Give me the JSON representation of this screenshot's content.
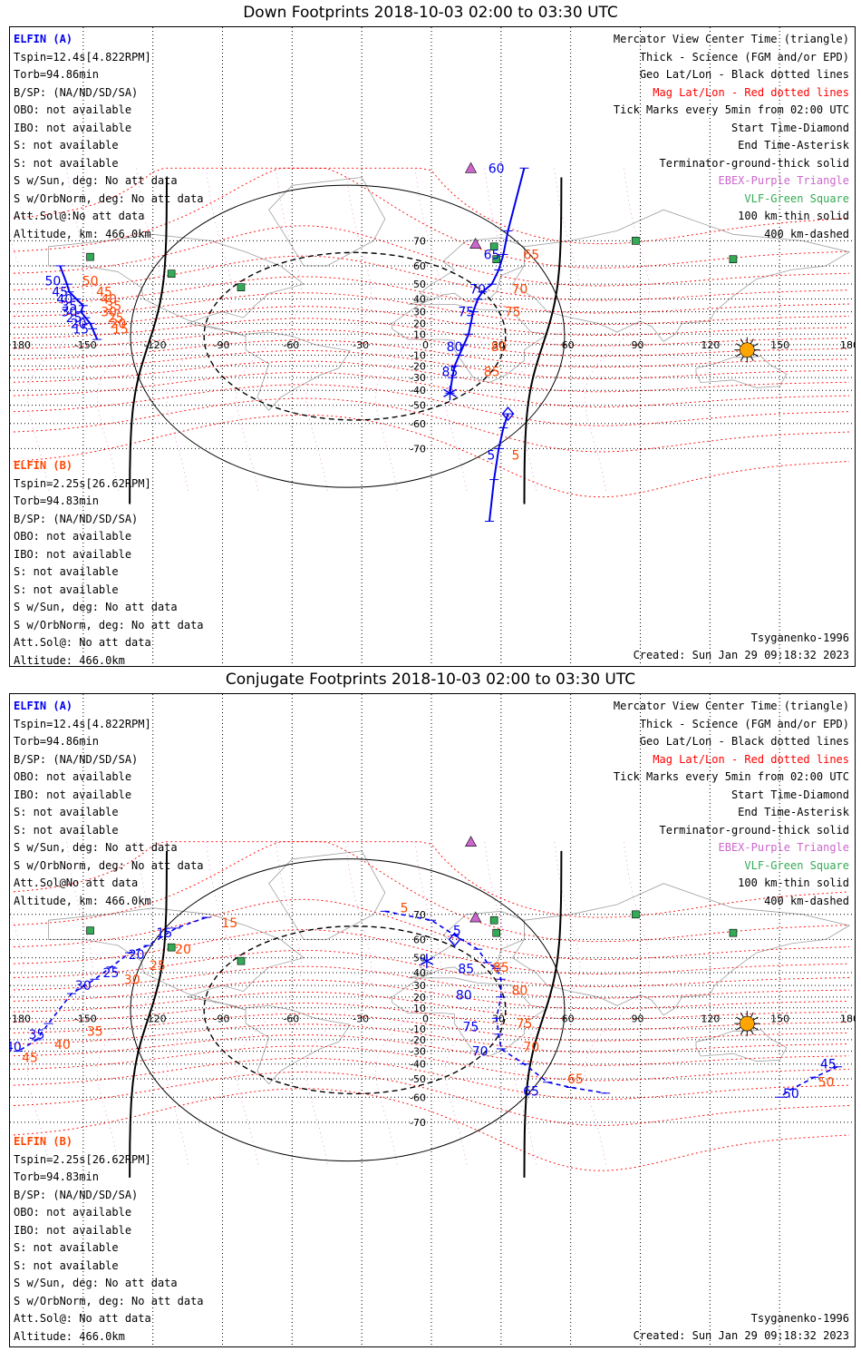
{
  "colors": {
    "sat_a": "#0000ee",
    "sat_b": "#ff4500",
    "mag_grid": "#ff0000",
    "geo_grid": "#000000",
    "coast": "#a0a0a0",
    "ebex": "#cc66cc",
    "vlf": "#33aa55",
    "sun": "#ffa500"
  },
  "panels": [
    {
      "id": "down",
      "title": "Down Footprints 2018-10-03 02:00 to 03:30 UTC",
      "sat_a": {
        "header": "ELFIN (A)",
        "lines": [
          "Tspin=12.4s[4.822RPM]",
          "Torb=94.86min",
          "B/SP: (NA/ND/SD/SA)",
          "OBO: not available",
          "IBO: not available",
          "S: not available",
          "S: not available",
          "S w/Sun, deg: No att data",
          "S w/OrbNorm, deg: No att data",
          "Att.Sol@:No att data",
          "Altitude, km: 466.0km"
        ]
      },
      "sat_b": {
        "header": "ELFIN (B)",
        "lines": [
          "Tspin=2.25s[26.62RPM]",
          "Torb=94.83min",
          "B/SP: (NA/ND/SD/SA)",
          "OBO: not available",
          "IBO: not available",
          "S: not available",
          "S: not available",
          "S w/Sun, deg: No att data",
          "S w/OrbNorm, deg: No att data",
          "Att.Sol@: No att data",
          "Altitude: 466.0km"
        ]
      },
      "tracks_a": [
        {
          "pts": [
            [
              -160,
              60
            ],
            [
              -157,
              50
            ],
            [
              -156,
              45
            ],
            [
              -153,
              40
            ],
            [
              -150,
              35
            ],
            [
              -151,
              30
            ],
            [
              -149,
              25
            ],
            [
              -147,
              20
            ],
            [
              -146,
              15
            ],
            [
              -144,
              5
            ]
          ],
          "labels": [
            {
              "lon": -158,
              "lat": 52,
              "t": "50",
              "side": "l"
            },
            {
              "lon": -155,
              "lat": 45,
              "t": "45",
              "side": "l"
            },
            {
              "lon": -153,
              "lat": 40,
              "t": "40",
              "side": "l"
            },
            {
              "lon": -151,
              "lat": 35,
              "t": "35",
              "side": "l"
            },
            {
              "lon": -151,
              "lat": 30,
              "t": "30",
              "side": "l"
            },
            {
              "lon": -149,
              "lat": 25,
              "t": "25",
              "side": "l"
            },
            {
              "lon": -147,
              "lat": 20,
              "t": "20",
              "side": "l"
            },
            {
              "lon": -146,
              "lat": 15,
              "t": "15",
              "side": "l"
            }
          ]
        },
        {
          "pts": [
            [
              40,
              88
            ],
            [
              33,
              73
            ],
            [
              31,
              65
            ],
            [
              29,
              58
            ],
            [
              26,
              50
            ],
            [
              22,
              45
            ],
            [
              20,
              40
            ],
            [
              18,
              30
            ],
            [
              17,
              20
            ],
            [
              16,
              10
            ],
            [
              14,
              0
            ],
            [
              12,
              -10
            ],
            [
              10,
              -20
            ],
            [
              9,
              -30
            ],
            [
              8,
              -42
            ]
          ],
          "labels": [
            {
              "lon": 33,
              "lat": 84,
              "t": "60",
              "side": "l"
            },
            {
              "lon": 31,
              "lat": 65,
              "t": "65",
              "side": "l"
            },
            {
              "lon": 25,
              "lat": 47,
              "t": "70",
              "side": "l"
            },
            {
              "lon": 20,
              "lat": 30,
              "t": "75",
              "side": "l"
            },
            {
              "lon": 15,
              "lat": -2,
              "t": "80",
              "side": "l"
            },
            {
              "lon": 13,
              "lat": -25,
              "t": "85",
              "side": "l"
            }
          ]
        },
        {
          "pts": [
            [
              33,
              -55
            ],
            [
              31,
              -62
            ],
            [
              29,
              -70
            ],
            [
              27,
              -78
            ],
            [
              25,
              -88
            ]
          ],
          "labels": [
            {
              "lon": 29,
              "lat": -72,
              "t": "5",
              "side": "l"
            }
          ]
        }
      ],
      "tracks_b_labels": [
        {
          "lon": -146,
          "lat": 45,
          "t": "45"
        },
        {
          "lon": -144,
          "lat": 40,
          "t": "40"
        },
        {
          "lon": -142,
          "lat": 35,
          "t": "35"
        },
        {
          "lon": -144,
          "lat": 30,
          "t": "30"
        },
        {
          "lon": -141,
          "lat": 25,
          "t": "25"
        },
        {
          "lon": -140,
          "lat": 20,
          "t": "20"
        },
        {
          "lon": -139,
          "lat": 15,
          "t": "15"
        },
        {
          "lon": -152,
          "lat": 52,
          "t": "50"
        },
        {
          "lon": 38,
          "lat": 65,
          "t": "65"
        },
        {
          "lon": 33,
          "lat": 47,
          "t": "70"
        },
        {
          "lon": 30,
          "lat": 30,
          "t": "75"
        },
        {
          "lon": 24,
          "lat": -2,
          "t": "80"
        },
        {
          "lon": 21,
          "lat": -25,
          "t": "85"
        },
        {
          "lon": 33,
          "lat": -72,
          "t": "5"
        }
      ],
      "end_asterisk": {
        "lon": 8,
        "lat": -42
      },
      "start_diamond": {
        "lon": 33,
        "lat": -55
      },
      "sun": {
        "lon": 136,
        "lat": -5
      }
    },
    {
      "id": "conj",
      "title": "Conjugate Footprints 2018-10-03 02:00 to 03:30 UTC",
      "sat_a": {
        "header": "ELFIN (A)",
        "lines": [
          "Tspin=12.4s[4.822RPM]",
          "Torb=94.86min",
          "B/SP: (NA/ND/SD/SA)",
          "OBO: not available",
          "IBO: not available",
          "S: not available",
          "S: not available",
          "S w/Sun, deg: No att data",
          "S w/OrbNorm, deg: No att data",
          "Att.Sol@No att data",
          "Altitude, km: 466.0km"
        ]
      },
      "sat_b": {
        "header": "ELFIN (B)",
        "lines": [
          "Tspin=2.25s[26.62RPM]",
          "Torb=94.83min",
          "B/SP: (NA/ND/SD/SA)",
          "OBO: not available",
          "IBO: not available",
          "S: not available",
          "S: not available",
          "S w/Sun, deg: No att data",
          "S w/OrbNorm, deg: No att data",
          "Att.Sol@: No att data",
          "Altitude: 466.0km"
        ]
      },
      "tracks_a": [
        {
          "pts": [
            [
              -97,
              69
            ],
            [
              -110,
              65
            ],
            [
              -122,
              57
            ],
            [
              -130,
              53
            ],
            [
              -138,
              44
            ],
            [
              -145,
              35
            ],
            [
              -155,
              23
            ],
            [
              -165,
              -5
            ],
            [
              -170,
              -20
            ],
            [
              -178,
              -30
            ]
          ],
          "labels": [
            {
              "lon": -110,
              "lat": 63,
              "t": "15",
              "side": "l"
            },
            {
              "lon": -122,
              "lat": 52,
              "t": "20",
              "side": "l"
            },
            {
              "lon": -133,
              "lat": 40,
              "t": "25",
              "side": "l"
            },
            {
              "lon": -145,
              "lat": 30,
              "t": "30",
              "side": "l"
            },
            {
              "lon": -165,
              "lat": -15,
              "t": "35",
              "side": "l"
            },
            {
              "lon": -175,
              "lat": -26,
              "t": "40",
              "side": "l"
            }
          ]
        },
        {
          "pts": [
            [
              -20,
              71
            ],
            [
              0,
              68
            ],
            [
              10,
              62
            ],
            [
              20,
              55
            ],
            [
              24,
              47
            ],
            [
              28,
              43
            ],
            [
              30,
              35
            ],
            [
              30,
              20
            ],
            [
              28,
              0
            ],
            [
              29,
              -15
            ],
            [
              30,
              -28
            ],
            [
              40,
              -40
            ],
            [
              50,
              -52
            ],
            [
              60,
              -55
            ],
            [
              75,
              -58
            ]
          ],
          "labels": [
            {
              "lon": 7,
              "lat": 64,
              "t": "5",
              "side": "r"
            },
            {
              "lon": 20,
              "lat": 43,
              "t": "85",
              "side": "l"
            },
            {
              "lon": 19,
              "lat": 22,
              "t": "80",
              "side": "l"
            },
            {
              "lon": 22,
              "lat": -8,
              "t": "75",
              "side": "l"
            },
            {
              "lon": 26,
              "lat": -30,
              "t": "70",
              "side": "l"
            },
            {
              "lon": 48,
              "lat": -57,
              "t": "65",
              "side": "l"
            }
          ]
        },
        {
          "pts": [
            [
              175,
              -42
            ],
            [
              165,
              -49
            ],
            [
              155,
              -56
            ],
            [
              150,
              -60
            ]
          ],
          "labels": [
            {
              "lon": 176,
              "lat": -40,
              "t": "45",
              "side": "l"
            },
            {
              "lon": 160,
              "lat": -58,
              "t": "50",
              "side": "l"
            }
          ]
        }
      ],
      "tracks_b_labels": [
        {
          "lon": -92,
          "lat": 67,
          "t": "15"
        },
        {
          "lon": -112,
          "lat": 55,
          "t": "20"
        },
        {
          "lon": -123,
          "lat": 45,
          "t": "25"
        },
        {
          "lon": -134,
          "lat": 35,
          "t": "30"
        },
        {
          "lon": -150,
          "lat": -12,
          "t": "35"
        },
        {
          "lon": -164,
          "lat": -24,
          "t": "40"
        },
        {
          "lon": -178,
          "lat": -35,
          "t": "45"
        },
        {
          "lon": -15,
          "lat": 72,
          "t": "5"
        },
        {
          "lon": 25,
          "lat": 44,
          "t": "85"
        },
        {
          "lon": 33,
          "lat": 26,
          "t": "80"
        },
        {
          "lon": 35,
          "lat": -5,
          "t": "75"
        },
        {
          "lon": 38,
          "lat": -26,
          "t": "70"
        },
        {
          "lon": 57,
          "lat": -50,
          "t": "65"
        },
        {
          "lon": 165,
          "lat": -52,
          "t": "50"
        }
      ],
      "end_asterisk": {
        "lon": -2,
        "lat": 48
      },
      "start_diamond": {
        "lon": 10,
        "lat": 60
      },
      "sun": {
        "lon": 136,
        "lat": -5
      }
    }
  ],
  "legend": [
    {
      "t": "Mercator View Center Time (triangle)",
      "c": "#000000"
    },
    {
      "t": "Thick - Science (FGM and/or EPD)",
      "c": "#000000"
    },
    {
      "t": "Geo Lat/Lon - Black dotted lines",
      "c": "#000000"
    },
    {
      "t": "Mag Lat/Lon - Red dotted lines",
      "c": "#ff0000"
    },
    {
      "t": "Tick Marks every 5min from 02:00 UTC",
      "c": "#000000"
    },
    {
      "t": "Start Time-Diamond",
      "c": "#000000"
    },
    {
      "t": "End Time-Asterisk",
      "c": "#000000"
    },
    {
      "t": "Terminator-ground-thick solid",
      "c": "#000000"
    },
    {
      "t": "EBEX-Purple Triangle",
      "c": "#cc66cc"
    },
    {
      "t": "VLF-Green Square",
      "c": "#33aa55"
    },
    {
      "t": "100 km-thin solid",
      "c": "#000000"
    },
    {
      "t": "400 km-dashed",
      "c": "#000000"
    }
  ],
  "footer": {
    "model": "Tsyganenko-1996",
    "created": "Created: Sun Jan 29 09:18:32 2023"
  },
  "lon_ticks": [
    "180",
    "-150",
    "-120",
    "-90",
    "-60",
    "-30",
    "0",
    "30",
    "60",
    "90",
    "120",
    "150",
    "180"
  ],
  "lat_ticks": [
    "70",
    "60",
    "50",
    "40",
    "30",
    "20",
    "10",
    "0",
    "-10",
    "-20",
    "-30",
    "-40",
    "-50",
    "-60",
    "-70"
  ],
  "ebex_sites": [
    {
      "lon": 17,
      "lat": 85
    },
    {
      "lon": 19,
      "lat": 69
    }
  ],
  "vlf_sites": [
    {
      "lon": -147,
      "lat": 64
    },
    {
      "lon": -112,
      "lat": 56
    },
    {
      "lon": -82,
      "lat": 48
    },
    {
      "lon": 27,
      "lat": 68
    },
    {
      "lon": 28,
      "lat": 63
    },
    {
      "lon": 88,
      "lat": 70
    },
    {
      "lon": 130,
      "lat": 63
    }
  ]
}
